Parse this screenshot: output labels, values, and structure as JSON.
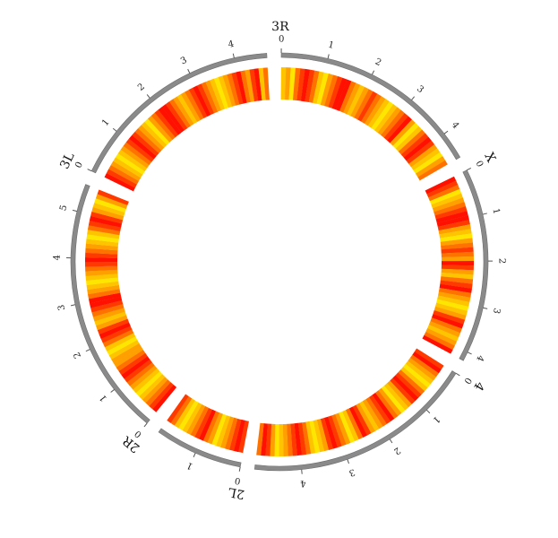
{
  "chart_data": {
    "type": "heatmap",
    "layout": "circular-ideogram",
    "colors": {
      "ideogram": "#8a8a8a",
      "axis": "#555555",
      "heat_scale": [
        "#ffe600",
        "#ffc400",
        "#ff9f00",
        "#ff7200",
        "#ff3a00",
        "#ff1000"
      ]
    },
    "segments": [
      {
        "name": "3R",
        "length": 4.6,
        "ticks": [
          0,
          1,
          2,
          3,
          4
        ],
        "heat": [
          1,
          2,
          0,
          3,
          4,
          5,
          4,
          3,
          1,
          0,
          2,
          3,
          4,
          5,
          5,
          3,
          2,
          1,
          2,
          3,
          4,
          3,
          2,
          1,
          0,
          1,
          2,
          3,
          4,
          5,
          2,
          0,
          1,
          3,
          4,
          5,
          4,
          2,
          1,
          0,
          2,
          3
        ]
      },
      {
        "name": "X",
        "length": 4.2,
        "ticks": [
          0,
          1,
          2,
          3,
          4
        ],
        "heat": [
          5,
          4,
          3,
          0,
          1,
          2,
          3,
          4,
          5,
          5,
          4,
          2,
          1,
          0,
          2,
          3,
          4,
          3,
          2,
          5,
          4,
          2,
          1,
          3,
          4,
          5,
          3,
          2,
          1,
          0,
          1,
          2,
          4,
          5,
          3,
          2,
          1,
          2,
          3,
          5
        ]
      },
      {
        "name": "4",
        "length": 5.0,
        "ticks": [
          0,
          1,
          2,
          3,
          4
        ],
        "heat": [
          4,
          5,
          3,
          2,
          1,
          0,
          1,
          3,
          4,
          5,
          4,
          2,
          1,
          0,
          2,
          3,
          5,
          4,
          3,
          2,
          1,
          2,
          4,
          5,
          3,
          1,
          0,
          2,
          3,
          4,
          5,
          4,
          2,
          1,
          0,
          1,
          3,
          4,
          5,
          4,
          3,
          2,
          1,
          0,
          2,
          4,
          5,
          3
        ]
      },
      {
        "name": "2L",
        "length": 1.9,
        "ticks": [
          0,
          1
        ],
        "heat": [
          4,
          5,
          4,
          3,
          2,
          1,
          0,
          2,
          3,
          5,
          4,
          3,
          2,
          1,
          0,
          1,
          3,
          4
        ]
      },
      {
        "name": "2R",
        "length": 5.6,
        "ticks": [
          0,
          1,
          2,
          3,
          4,
          5
        ],
        "heat": [
          5,
          4,
          3,
          2,
          1,
          0,
          1,
          2,
          3,
          4,
          5,
          4,
          3,
          2,
          2,
          1,
          0,
          1,
          3,
          4,
          5,
          4,
          2,
          1,
          2,
          3,
          4,
          5,
          5,
          3,
          2,
          1,
          0,
          1,
          2,
          3,
          4,
          5,
          4,
          3,
          2,
          1,
          0,
          1,
          3,
          4,
          5,
          4,
          2,
          1,
          0,
          2,
          4
        ]
      },
      {
        "name": "3L",
        "length": 4.7,
        "ticks": [
          0,
          1,
          2,
          3,
          4
        ],
        "heat": [
          5,
          4,
          3,
          2,
          1,
          0,
          1,
          2,
          3,
          4,
          5,
          4,
          3,
          2,
          1,
          0,
          2,
          3,
          4,
          5,
          5,
          4,
          3,
          2,
          1,
          2,
          3,
          4,
          5,
          4,
          3,
          2,
          1,
          0,
          1,
          2,
          3,
          4,
          5,
          3,
          2,
          4,
          5,
          1,
          3
        ]
      }
    ]
  }
}
